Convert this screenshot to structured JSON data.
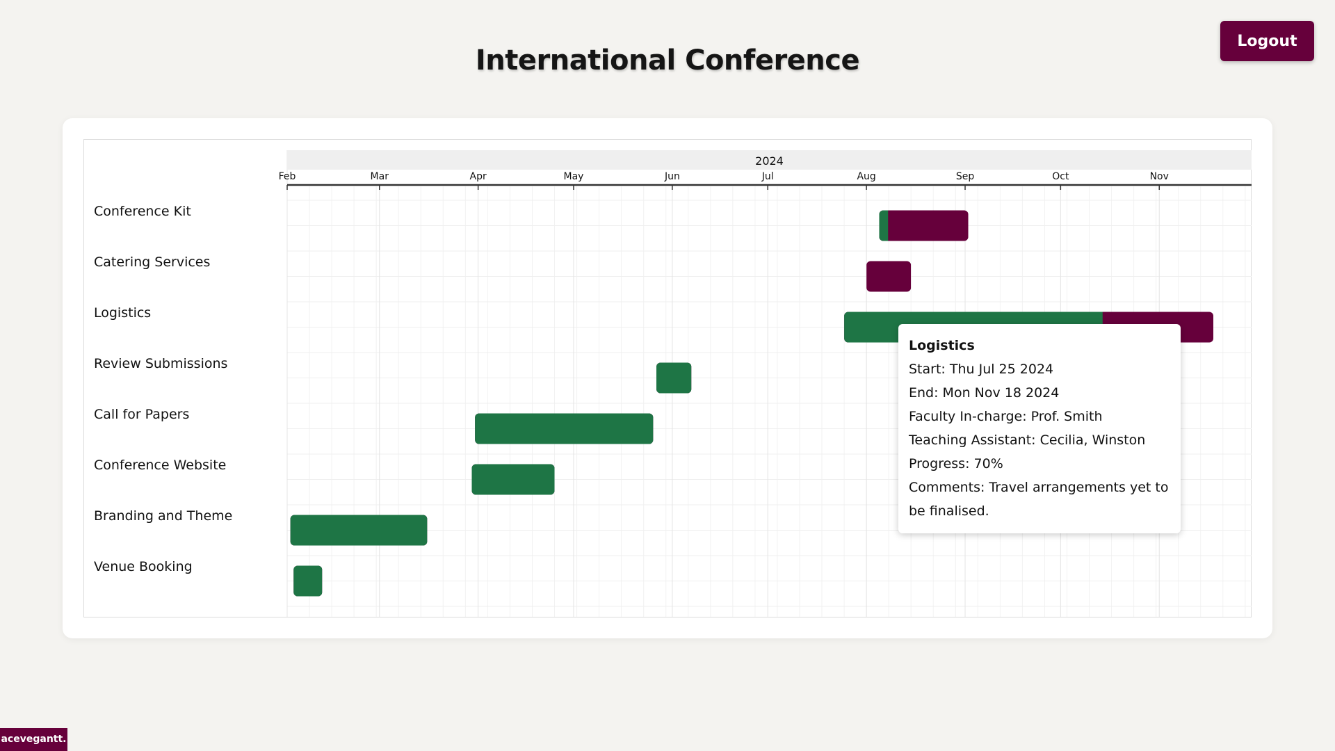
{
  "header": {
    "title": "International Conference",
    "logout_label": "Logout"
  },
  "colors": {
    "accent": "#66003b",
    "progress": "#1e7545",
    "remaining": "#66003b"
  },
  "chart_data": {
    "type": "gantt",
    "year_label": "2024",
    "x_range": [
      "2024-02-01",
      "2024-11-30"
    ],
    "months": [
      {
        "label": "Feb",
        "date": "2024-02-01"
      },
      {
        "label": "Mar",
        "date": "2024-03-01"
      },
      {
        "label": "Apr",
        "date": "2024-04-01"
      },
      {
        "label": "May",
        "date": "2024-05-01"
      },
      {
        "label": "Jun",
        "date": "2024-06-01"
      },
      {
        "label": "Jul",
        "date": "2024-07-01"
      },
      {
        "label": "Aug",
        "date": "2024-08-01"
      },
      {
        "label": "Sep",
        "date": "2024-09-01"
      },
      {
        "label": "Oct",
        "date": "2024-10-01"
      },
      {
        "label": "Nov",
        "date": "2024-11-01"
      }
    ],
    "tasks": [
      {
        "name": "Conference Kit",
        "start": "2024-08-05",
        "end": "2024-09-02",
        "progress": 0.1
      },
      {
        "name": "Catering Services",
        "start": "2024-08-01",
        "end": "2024-08-15",
        "progress": 0
      },
      {
        "name": "Logistics",
        "start": "2024-07-25",
        "end": "2024-11-18",
        "progress": 0.7
      },
      {
        "name": "Review Submissions",
        "start": "2024-05-27",
        "end": "2024-06-07",
        "progress": 1
      },
      {
        "name": "Call for Papers",
        "start": "2024-03-31",
        "end": "2024-05-26",
        "progress": 1
      },
      {
        "name": "Conference Website",
        "start": "2024-03-30",
        "end": "2024-04-25",
        "progress": 1
      },
      {
        "name": "Branding and Theme",
        "start": "2024-02-02",
        "end": "2024-03-16",
        "progress": 1
      },
      {
        "name": "Venue Booking",
        "start": "2024-02-03",
        "end": "2024-02-12",
        "progress": 1
      }
    ]
  },
  "tooltip": {
    "title": "Logistics",
    "start": "Start: Thu Jul 25 2024",
    "end": "End: Mon Nov 18 2024",
    "faculty": "Faculty In-charge: Prof. Smith",
    "assistant": "Teaching Assistant: Cecilia, Winston",
    "progress": "Progress: 70%",
    "comments": "Comments: Travel arrangements yet to be finalised."
  },
  "footer": {
    "brand": "acevegantt."
  }
}
